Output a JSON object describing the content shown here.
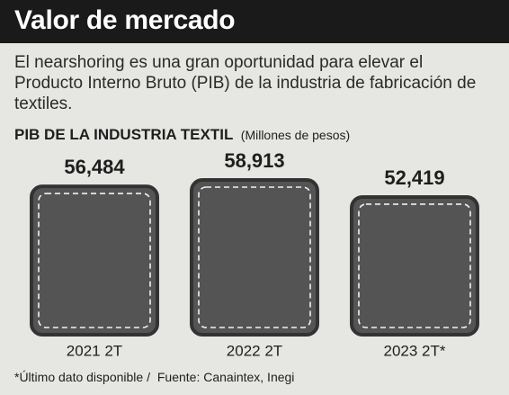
{
  "chart_data": {
    "type": "bar",
    "title": "Valor de mercado",
    "subtitle": "El nearshoring es una gran oportunidad para elevar el Producto Interno Bruto (PIB) de la industria de fabricación de textiles.",
    "chart_title": "PIB DE LA INDUSTRIA TEXTIL",
    "unit": "(Millones de pesos)",
    "categories": [
      "2021 2T",
      "2022 2T",
      "2023 2T*"
    ],
    "values": [
      56484,
      58913,
      52419
    ],
    "value_labels": [
      "56,484",
      "58,913",
      "52,419"
    ],
    "color": "#545454",
    "note": "*Último dato disponible /",
    "source": "Fuente: Canaintex, Inegi"
  }
}
